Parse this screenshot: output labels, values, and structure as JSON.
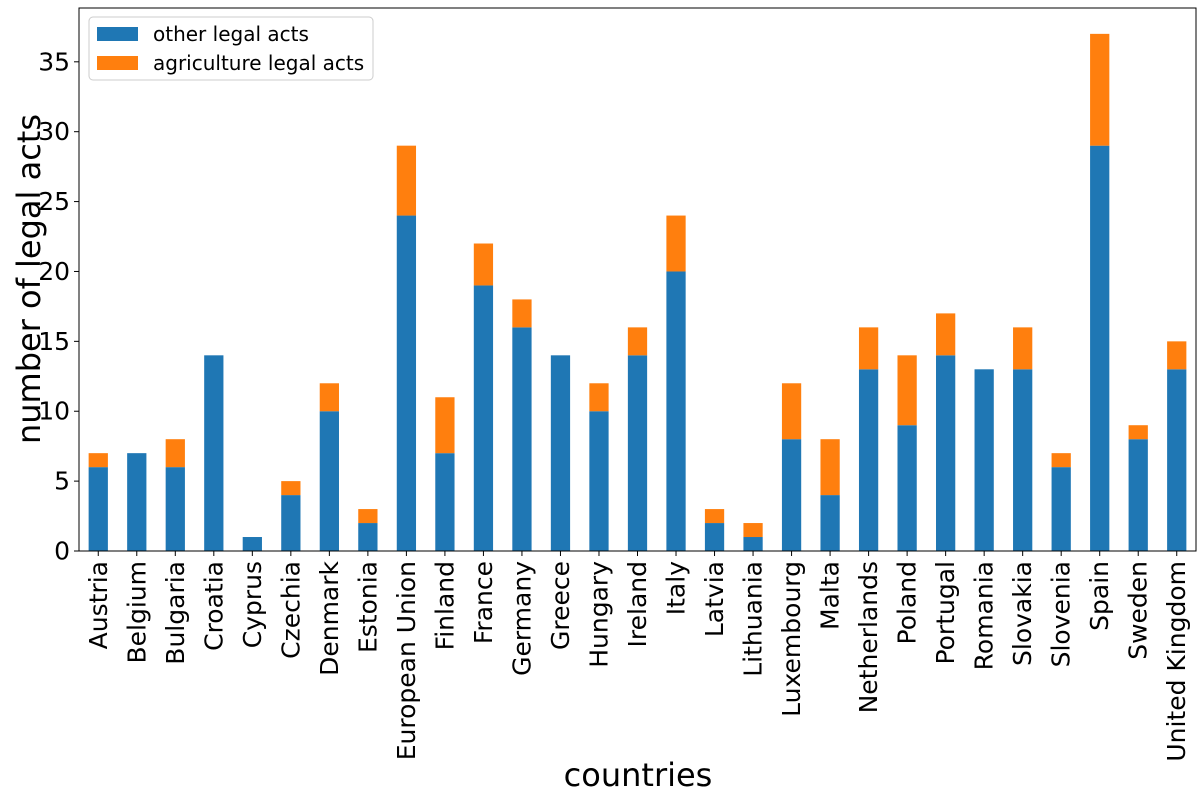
{
  "chart_data": {
    "type": "bar",
    "stacked": true,
    "title": "",
    "xlabel": "countries",
    "ylabel": "number of legal acts",
    "ylim": [
      0,
      38.85
    ],
    "yticks": [
      0,
      5,
      10,
      15,
      20,
      25,
      30,
      35
    ],
    "grid": false,
    "legend_position": "top-left",
    "categories": [
      "Austria",
      "Belgium",
      "Bulgaria",
      "Croatia",
      "Cyprus",
      "Czechia",
      "Denmark",
      "Estonia",
      "European Union",
      "Finland",
      "France",
      "Germany",
      "Greece",
      "Hungary",
      "Ireland",
      "Italy",
      "Latvia",
      "Lithuania",
      "Luxembourg",
      "Malta",
      "Netherlands",
      "Poland",
      "Portugal",
      "Romania",
      "Slovakia",
      "Slovenia",
      "Spain",
      "Sweden",
      "United Kingdom"
    ],
    "series": [
      {
        "name": "other legal acts",
        "color": "#1f77b4",
        "values": [
          6,
          7,
          6,
          14,
          1,
          4,
          10,
          2,
          24,
          7,
          19,
          16,
          14,
          10,
          14,
          20,
          2,
          1,
          8,
          4,
          13,
          9,
          14,
          13,
          13,
          6,
          29,
          8,
          13
        ]
      },
      {
        "name": "agriculture legal acts",
        "color": "#ff7f0e",
        "values": [
          1,
          0,
          2,
          0,
          0,
          1,
          2,
          1,
          5,
          4,
          3,
          2,
          0,
          2,
          2,
          4,
          1,
          1,
          4,
          4,
          3,
          5,
          3,
          0,
          3,
          1,
          8,
          1,
          2
        ]
      }
    ]
  }
}
